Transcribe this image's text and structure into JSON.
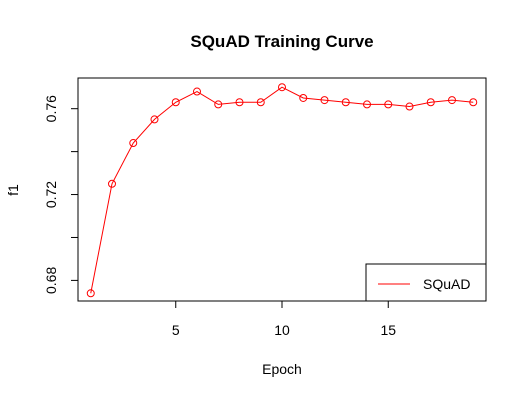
{
  "chart_data": {
    "type": "line",
    "title": "SQuAD Training Curve",
    "xlabel": "Epoch",
    "ylabel": "f1",
    "xlim": [
      0.4,
      19.6
    ],
    "ylim": [
      0.6704,
      0.7743
    ],
    "x_ticks": [
      5,
      10,
      15
    ],
    "y_ticks": [
      0.68,
      0.7,
      0.72,
      0.74,
      0.76
    ],
    "x_tick_labels": [
      "5",
      "10",
      "15"
    ],
    "y_tick_labels": [
      "0.68",
      "",
      "0.72",
      "",
      "0.76"
    ],
    "legend_position": "bottom-right",
    "grid": false,
    "series": [
      {
        "name": "SQuAD",
        "color": "#ff0000",
        "marker": "open-circle",
        "x": [
          1,
          2,
          3,
          4,
          5,
          6,
          7,
          8,
          9,
          10,
          11,
          12,
          13,
          14,
          15,
          16,
          17,
          18,
          19
        ],
        "y": [
          0.674,
          0.725,
          0.744,
          0.755,
          0.763,
          0.768,
          0.762,
          0.763,
          0.763,
          0.77,
          0.765,
          0.764,
          0.763,
          0.762,
          0.762,
          0.761,
          0.763,
          0.764,
          0.763
        ]
      }
    ]
  }
}
